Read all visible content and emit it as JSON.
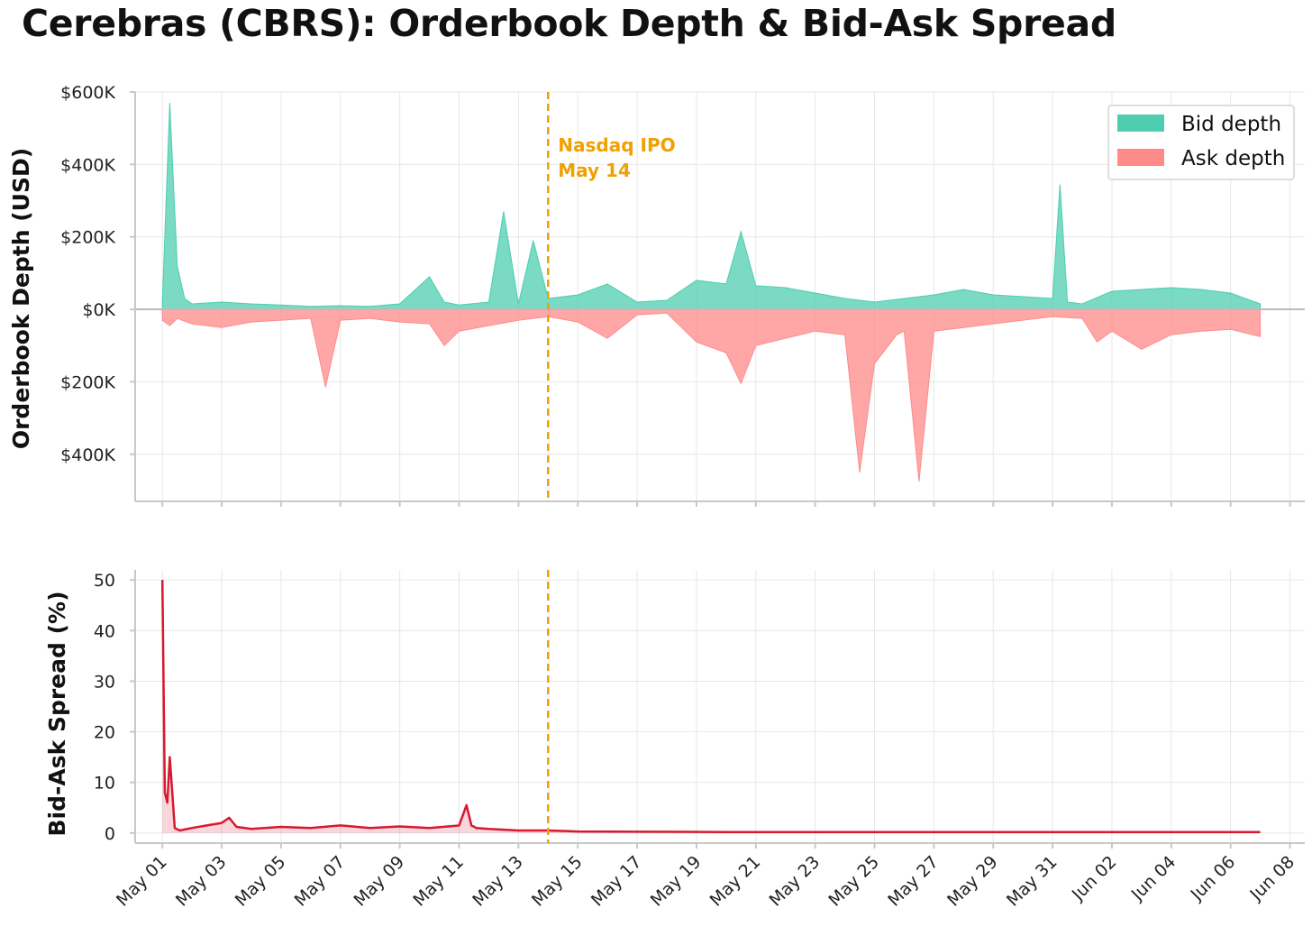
{
  "title": "Cerebras (CBRS): Orderbook Depth & Bid-Ask Spread",
  "colors": {
    "bid": "#4ecdb0",
    "ask": "#ff8a8a",
    "spread": "#d7192f",
    "ipo": "#f0a000",
    "zero": "#bbbbbb"
  },
  "chart_data": [
    {
      "type": "area",
      "ylabel": "Orderbook Depth (USD)",
      "ylim": [
        -530000,
        600000
      ],
      "y_ticks": [
        {
          "value": 600000,
          "label": "$600K"
        },
        {
          "value": 400000,
          "label": "$400K"
        },
        {
          "value": 200000,
          "label": "$200K"
        },
        {
          "value": 0,
          "label": "$0K"
        },
        {
          "value": -200000,
          "label": "$200K"
        },
        {
          "value": -400000,
          "label": "$400K"
        }
      ],
      "grid": true,
      "legend": "top-right",
      "legend_entries": [
        "Bid depth",
        "Ask depth"
      ],
      "series": [
        {
          "name": "Bid depth",
          "x": [
            "2025-05-01",
            "2025-05-01 06:00",
            "2025-05-01 12:00",
            "2025-05-01 18:00",
            "2025-05-02",
            "2025-05-03",
            "2025-05-04",
            "2025-05-05",
            "2025-05-06",
            "2025-05-07",
            "2025-05-08",
            "2025-05-09",
            "2025-05-10",
            "2025-05-10 12:00",
            "2025-05-11",
            "2025-05-12",
            "2025-05-12 12:00",
            "2025-05-13",
            "2025-05-13 12:00",
            "2025-05-14",
            "2025-05-15",
            "2025-05-16",
            "2025-05-17",
            "2025-05-18",
            "2025-05-19",
            "2025-05-20",
            "2025-05-20 12:00",
            "2025-05-21",
            "2025-05-22",
            "2025-05-23",
            "2025-05-24",
            "2025-05-25",
            "2025-05-26",
            "2025-05-27",
            "2025-05-28",
            "2025-05-29",
            "2025-05-30",
            "2025-05-31",
            "2025-05-31 06:00",
            "2025-05-31 12:00",
            "2025-06-01",
            "2025-06-02",
            "2025-06-03",
            "2025-06-04",
            "2025-06-05",
            "2025-06-06",
            "2025-06-07"
          ],
          "values": [
            20000,
            570000,
            120000,
            30000,
            15000,
            20000,
            15000,
            12000,
            8000,
            10000,
            8000,
            15000,
            90000,
            20000,
            12000,
            20000,
            270000,
            15000,
            190000,
            30000,
            40000,
            70000,
            20000,
            25000,
            80000,
            70000,
            215000,
            65000,
            60000,
            45000,
            30000,
            20000,
            30000,
            40000,
            55000,
            40000,
            35000,
            30000,
            345000,
            20000,
            15000,
            50000,
            55000,
            60000,
            55000,
            45000,
            15000
          ]
        },
        {
          "name": "Ask depth",
          "x": [
            "2025-05-01",
            "2025-05-01 06:00",
            "2025-05-01 12:00",
            "2025-05-02",
            "2025-05-03",
            "2025-05-04",
            "2025-05-05",
            "2025-05-06",
            "2025-05-06 12:00",
            "2025-05-07",
            "2025-05-08",
            "2025-05-09",
            "2025-05-10",
            "2025-05-10 12:00",
            "2025-05-11",
            "2025-05-12",
            "2025-05-13",
            "2025-05-14",
            "2025-05-15",
            "2025-05-16",
            "2025-05-17",
            "2025-05-18",
            "2025-05-19",
            "2025-05-20",
            "2025-05-20 12:00",
            "2025-05-21",
            "2025-05-22",
            "2025-05-23",
            "2025-05-24",
            "2025-05-24 12:00",
            "2025-05-25",
            "2025-05-25 18:00",
            "2025-05-26",
            "2025-05-26 12:00",
            "2025-05-27",
            "2025-05-28",
            "2025-05-29",
            "2025-05-30",
            "2025-05-31",
            "2025-06-01",
            "2025-06-01 12:00",
            "2025-06-02",
            "2025-06-03",
            "2025-06-04",
            "2025-06-05",
            "2025-06-06",
            "2025-06-07"
          ],
          "values": [
            -30000,
            -45000,
            -25000,
            -40000,
            -50000,
            -35000,
            -30000,
            -25000,
            -215000,
            -30000,
            -25000,
            -35000,
            -40000,
            -100000,
            -60000,
            -45000,
            -30000,
            -20000,
            -35000,
            -80000,
            -15000,
            -10000,
            -90000,
            -120000,
            -205000,
            -100000,
            -80000,
            -60000,
            -70000,
            -450000,
            -150000,
            -70000,
            -60000,
            -475000,
            -60000,
            -50000,
            -40000,
            -30000,
            -20000,
            -25000,
            -90000,
            -60000,
            -110000,
            -70000,
            -60000,
            -55000,
            -75000
          ]
        }
      ],
      "annotations": [
        {
          "x": "2025-05-14",
          "text_lines": [
            "Nasdaq IPO",
            "May 14"
          ]
        }
      ]
    },
    {
      "type": "line",
      "ylabel": "Bid-Ask Spread (%)",
      "ylim": [
        -2,
        52
      ],
      "y_ticks": [
        {
          "value": 50,
          "label": "50"
        },
        {
          "value": 40,
          "label": "40"
        },
        {
          "value": 30,
          "label": "30"
        },
        {
          "value": 20,
          "label": "20"
        },
        {
          "value": 10,
          "label": "10"
        },
        {
          "value": 0,
          "label": "0"
        }
      ],
      "grid": true,
      "series": [
        {
          "x": [
            "2025-05-01",
            "2025-05-01 02:00",
            "2025-05-01 04:00",
            "2025-05-01 06:00",
            "2025-05-01 08:00",
            "2025-05-01 10:00",
            "2025-05-01 14:00",
            "2025-05-02",
            "2025-05-02 12:00",
            "2025-05-03",
            "2025-05-03 06:00",
            "2025-05-03 12:00",
            "2025-05-04",
            "2025-05-05",
            "2025-05-06",
            "2025-05-07",
            "2025-05-08",
            "2025-05-09",
            "2025-05-10",
            "2025-05-11",
            "2025-05-11 06:00",
            "2025-05-11 10:00",
            "2025-05-11 14:00",
            "2025-05-12",
            "2025-05-13",
            "2025-05-14",
            "2025-05-15",
            "2025-05-20",
            "2025-05-25",
            "2025-05-30",
            "2025-06-04",
            "2025-06-07"
          ],
          "values": [
            50,
            8,
            6,
            15,
            8,
            1,
            0.5,
            1,
            1.5,
            2,
            3,
            1.2,
            0.8,
            1.2,
            1,
            1.5,
            1,
            1.3,
            1,
            1.5,
            5.5,
            1.5,
            1,
            0.8,
            0.5,
            0.5,
            0.3,
            0.2,
            0.2,
            0.2,
            0.2,
            0.2
          ]
        }
      ],
      "annotations": [
        {
          "x": "2025-05-14"
        }
      ]
    }
  ],
  "x_axis": {
    "xlim": [
      "2025-04-30 02:00",
      "2025-06-08 12:00"
    ],
    "tick_labels": [
      {
        "date": "2025-05-01",
        "label": "May 01"
      },
      {
        "date": "2025-05-03",
        "label": "May 03"
      },
      {
        "date": "2025-05-05",
        "label": "May 05"
      },
      {
        "date": "2025-05-07",
        "label": "May 07"
      },
      {
        "date": "2025-05-09",
        "label": "May 09"
      },
      {
        "date": "2025-05-11",
        "label": "May 11"
      },
      {
        "date": "2025-05-13",
        "label": "May 13"
      },
      {
        "date": "2025-05-15",
        "label": "May 15"
      },
      {
        "date": "2025-05-17",
        "label": "May 17"
      },
      {
        "date": "2025-05-19",
        "label": "May 19"
      },
      {
        "date": "2025-05-21",
        "label": "May 21"
      },
      {
        "date": "2025-05-23",
        "label": "May 23"
      },
      {
        "date": "2025-05-25",
        "label": "May 25"
      },
      {
        "date": "2025-05-27",
        "label": "May 27"
      },
      {
        "date": "2025-05-29",
        "label": "May 29"
      },
      {
        "date": "2025-05-31",
        "label": "May 31"
      },
      {
        "date": "2025-06-02",
        "label": "Jun 02"
      },
      {
        "date": "2025-06-04",
        "label": "Jun 04"
      },
      {
        "date": "2025-06-06",
        "label": "Jun 06"
      },
      {
        "date": "2025-06-08",
        "label": "Jun 08"
      }
    ]
  }
}
